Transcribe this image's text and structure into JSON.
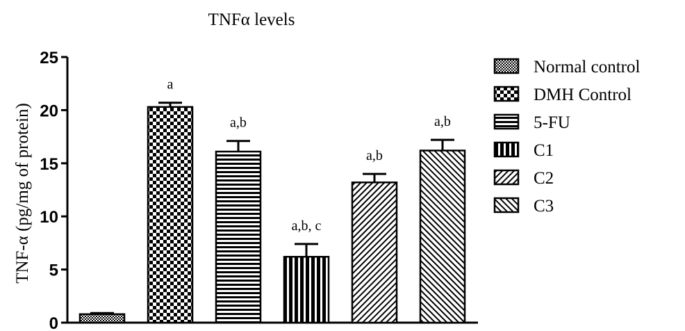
{
  "chart_data": {
    "type": "bar",
    "title": "TNFα levels",
    "ylabel": "TNF-α (pg/mg of protein)",
    "xlabel": "",
    "ylim": [
      0,
      25
    ],
    "yticks": [
      0,
      5,
      10,
      15,
      20,
      25
    ],
    "grid": false,
    "legend_position": "right",
    "categories": [
      "Normal control",
      "DMH Control",
      "5-FU",
      "C1",
      "C2",
      "C3"
    ],
    "values": [
      0.8,
      20.3,
      16.1,
      6.2,
      13.2,
      16.2
    ],
    "errors": [
      0.1,
      0.4,
      1.0,
      1.2,
      0.8,
      1.0
    ],
    "annotations": [
      "",
      "a",
      "a,b",
      "a,b, c",
      "a,b",
      "a,b"
    ],
    "patterns": [
      "checker-fine",
      "checker-coarse",
      "horizontal-lines",
      "vertical-lines",
      "diagonal-fine",
      "diagonal-reverse"
    ],
    "colors": {
      "ink": "#000000",
      "background": "#ffffff"
    }
  }
}
